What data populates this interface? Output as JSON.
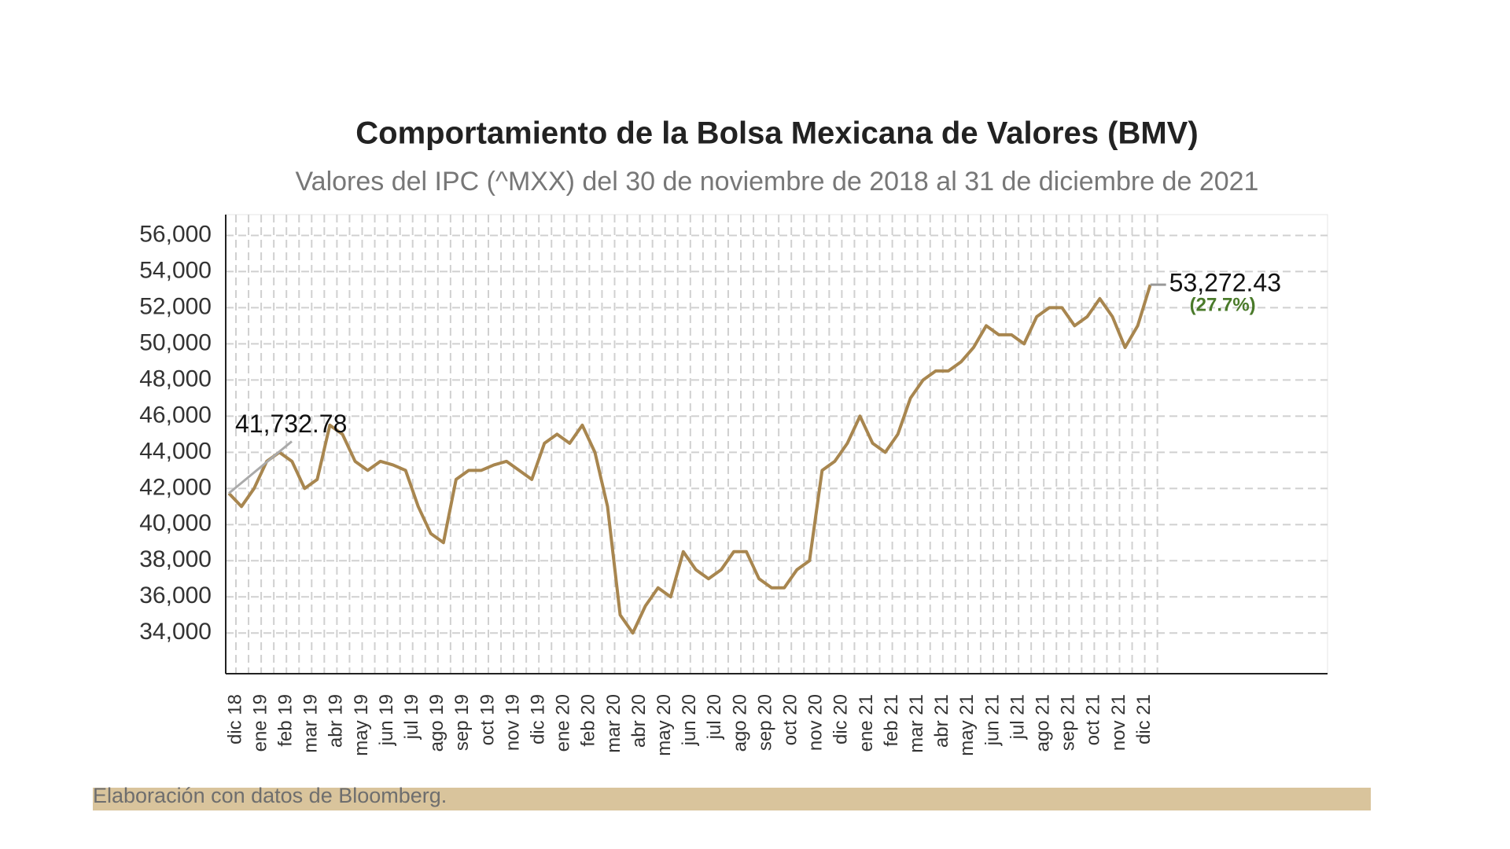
{
  "chart_data": {
    "type": "line",
    "title": "Comportamiento de la Bolsa Mexicana de Valores (BMV)",
    "subtitle": "Valores del IPC (^MXX) del 30 de noviembre de 2018 al 31 de diciembre de 2021",
    "source": "Elaboración con datos de Bloomberg.",
    "annotation": "(27.7%)",
    "categories": [
      "dic 18",
      null,
      "ene 19",
      null,
      "feb 19",
      null,
      "mar 19",
      null,
      "abr 19",
      null,
      "may 19",
      null,
      "jun 19",
      null,
      "jul 19",
      null,
      "ago 19",
      null,
      "sep 19",
      null,
      "oct 19",
      null,
      "nov 19",
      null,
      "dic 19",
      null,
      "ene 20",
      null,
      "feb 20",
      null,
      "mar 20",
      null,
      "abr 20",
      null,
      "may 20",
      null,
      "jun 20",
      null,
      "jul 20",
      null,
      "ago 20",
      null,
      "sep 20",
      null,
      "oct 20",
      null,
      "nov 20",
      null,
      "dic 20",
      null,
      "ene 21",
      null,
      "feb 21",
      null,
      "mar 21",
      null,
      "abr 21",
      null,
      "may 21",
      null,
      "jun 21",
      null,
      "jul 21",
      null,
      "ago 21",
      null,
      "sep 21",
      null,
      "oct 21",
      null,
      "nov 21",
      null,
      "dic 21",
      null
    ],
    "series": [
      {
        "name": "IPC",
        "color": "#a8864f",
        "values": [
          41732.78,
          41000,
          42000,
          43500,
          44000,
          43500,
          42000,
          42500,
          45500,
          45000,
          43500,
          43000,
          43500,
          43300,
          43000,
          41000,
          39500,
          39000,
          42500,
          43000,
          43000,
          43300,
          43500,
          43000,
          42500,
          44500,
          45000,
          44500,
          45500,
          44000,
          41000,
          35000,
          34000,
          35500,
          36500,
          36000,
          38500,
          37500,
          37000,
          37500,
          38500,
          38500,
          37000,
          36500,
          36500,
          37500,
          38000,
          43000,
          43500,
          44500,
          46000,
          44500,
          44000,
          45000,
          47000,
          48000,
          48500,
          48500,
          49000,
          49800,
          51000,
          50500,
          50500,
          50000,
          51500,
          52000,
          52000,
          51000,
          51500,
          52500,
          51500,
          49800,
          51000,
          53272.43
        ],
        "value_labels": [
          "41,732.78",
          null,
          null,
          null,
          null,
          null,
          null,
          null,
          null,
          null,
          null,
          null,
          null,
          null,
          null,
          null,
          null,
          null,
          null,
          null,
          null,
          null,
          null,
          null,
          null,
          null,
          null,
          null,
          null,
          null,
          null,
          null,
          null,
          null,
          null,
          null,
          null,
          null,
          null,
          null,
          null,
          null,
          null,
          null,
          null,
          null,
          null,
          null,
          null,
          null,
          null,
          null,
          null,
          null,
          null,
          null,
          null,
          null,
          null,
          null,
          null,
          null,
          null,
          null,
          null,
          null,
          null,
          null,
          null,
          null,
          null,
          null,
          null,
          "53,272.43"
        ]
      }
    ],
    "ylim": [
      31750,
      57150
    ],
    "yticks": [
      {
        "value": 34000,
        "label": "34,000"
      },
      {
        "value": 36000,
        "label": "36,000"
      },
      {
        "value": 38000,
        "label": "38,000"
      },
      {
        "value": 40000,
        "label": "40,000"
      },
      {
        "value": 42000,
        "label": "42,000"
      },
      {
        "value": 44000,
        "label": "44,000"
      },
      {
        "value": 46000,
        "label": "46,000"
      },
      {
        "value": 48000,
        "label": "48,000"
      },
      {
        "value": 50000,
        "label": "50,000"
      },
      {
        "value": 52000,
        "label": "52,000"
      },
      {
        "value": 54000,
        "label": "54,000"
      },
      {
        "value": 56000,
        "label": "56,000"
      }
    ],
    "grid": true
  }
}
